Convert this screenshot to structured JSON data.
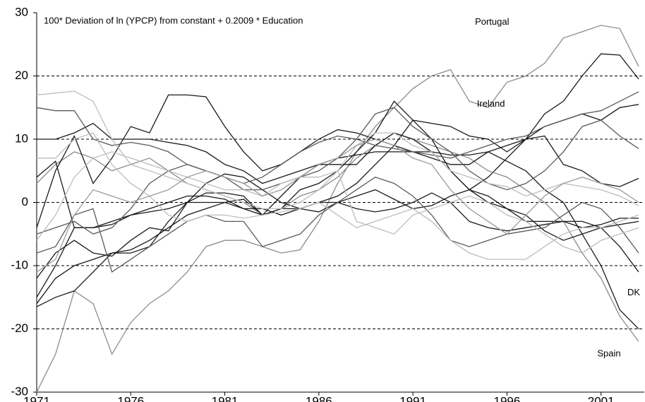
{
  "chart_data": {
    "type": "line",
    "annotation": "100* Deviation of ln (YPCP) from constant + 0.2009 * Education",
    "x": [
      1971,
      1972,
      1973,
      1974,
      1975,
      1976,
      1977,
      1978,
      1979,
      1980,
      1981,
      1982,
      1983,
      1984,
      1985,
      1986,
      1987,
      1988,
      1989,
      1990,
      1991,
      1992,
      1993,
      1994,
      1995,
      1996,
      1997,
      1998,
      1999,
      2000,
      2001,
      2002,
      2003
    ],
    "xlim": [
      1971,
      2003
    ],
    "xticks": [
      1971,
      1976,
      1981,
      1986,
      1991,
      1996,
      2001
    ],
    "ylim": [
      -30,
      30
    ],
    "yticks": [
      -30,
      -20,
      -10,
      0,
      10,
      20,
      30
    ],
    "grid": true,
    "series": [
      {
        "name": "Portugal",
        "color": "#8c8c8c",
        "values": [
          -30,
          -24,
          -14,
          -16,
          -24,
          -19,
          -16,
          -14,
          -11,
          -7,
          -6,
          -6,
          -7,
          -8,
          -7.5,
          -3,
          3,
          8,
          12,
          15,
          18,
          20,
          21,
          16,
          15,
          19,
          20,
          22,
          26,
          27,
          28,
          27.5,
          21.5
        ]
      },
      {
        "name": "Ireland",
        "color": "#1a1a1a",
        "values": [
          -16.5,
          -15,
          -14,
          -11,
          -8,
          -8,
          -7,
          -3,
          0,
          0,
          0,
          0.5,
          -2,
          -1,
          -1,
          0,
          0,
          1,
          2,
          0.5,
          -1,
          -0.5,
          1,
          2,
          4,
          7,
          10,
          14,
          16,
          20,
          23.5,
          23.3,
          19.5
        ]
      },
      {
        "name": "DK",
        "color": "#1a1a1a",
        "values": [
          10,
          10,
          11,
          12.5,
          10,
          10,
          10,
          9.5,
          9,
          8,
          6,
          5,
          3,
          4,
          5,
          6,
          7,
          7.5,
          8,
          8,
          8,
          8,
          7.5,
          7.5,
          8,
          6.5,
          5,
          2,
          0,
          -5,
          -10,
          -17,
          -20
        ]
      },
      {
        "name": "Spain",
        "color": "#8c8c8c",
        "values": [
          3,
          6,
          8,
          7,
          5,
          6,
          7,
          5,
          3,
          2,
          1,
          0,
          -2,
          -1,
          1,
          2,
          4,
          7,
          9,
          11,
          10,
          9,
          8,
          7,
          5,
          4,
          2,
          0,
          -3,
          -8,
          -12,
          -18,
          -22
        ]
      },
      {
        "color": "#1a1a1a",
        "values": [
          -4,
          5,
          10.5,
          3,
          7,
          12,
          11,
          17,
          17,
          16.7,
          12,
          8,
          5,
          6,
          8,
          10,
          11.5,
          11,
          10,
          9,
          8,
          7,
          6,
          6,
          8,
          9,
          10,
          12,
          13,
          14,
          13,
          15,
          15.5
        ]
      },
      {
        "color": "#1a1a1a",
        "values": [
          -15,
          -10,
          -4,
          -4,
          -3.5,
          -2,
          -1,
          0,
          1,
          1,
          0.5,
          -1,
          -2,
          -1,
          2,
          3,
          5,
          8,
          11,
          16,
          13,
          10,
          5,
          2,
          1,
          -1,
          -3,
          -3,
          -3,
          -4,
          -3.5,
          -2.5,
          -2.5
        ]
      },
      {
        "color": "#1a1a1a",
        "values": [
          -16,
          -12,
          -10,
          -9,
          -8,
          -7.5,
          -6,
          -4,
          -2,
          -1,
          0,
          -1,
          -1,
          -2,
          -1,
          0,
          1,
          3,
          6,
          9,
          13,
          12.5,
          12,
          10.5,
          10,
          8,
          10,
          10.5,
          6,
          5,
          3,
          2.5,
          3.8
        ]
      },
      {
        "color": "#1a1a1a",
        "values": [
          4,
          6.5,
          -4,
          -4,
          -3,
          -2,
          -1.5,
          -1,
          0,
          3,
          4.5,
          4,
          2,
          0,
          -1,
          -1.5,
          0,
          -1,
          -1.5,
          -1,
          0,
          1.5,
          0,
          -3,
          -4,
          -4.5,
          -4,
          -3.5,
          -3,
          -3,
          -4,
          -7,
          -11
        ]
      },
      {
        "color": "#1a1a1a",
        "values": [
          -12,
          -8,
          -6,
          -8,
          -8.5,
          -6,
          -4,
          -4.5,
          0,
          1.5,
          1.5,
          1,
          -2,
          1,
          4,
          6,
          6,
          6,
          9,
          11,
          10,
          8,
          5,
          2,
          0,
          -1,
          -2,
          -4.5,
          -6,
          -5,
          -4,
          -3.5,
          -3
        ]
      },
      {
        "color": "#5a5a5a",
        "values": [
          -5,
          -4,
          -3,
          -5,
          -4,
          -1,
          3,
          5,
          6,
          5,
          4,
          3,
          4,
          6,
          8,
          9.5,
          10.5,
          10,
          9,
          8.5,
          8,
          7.5,
          7,
          8,
          9,
          10,
          10.5,
          12,
          13,
          14,
          14.5,
          16,
          17.5
        ]
      },
      {
        "color": "#5a5a5a",
        "values": [
          15,
          14.5,
          14.5,
          10,
          9,
          9.5,
          9,
          8,
          6,
          5,
          4,
          2,
          2,
          3,
          4,
          5,
          7,
          10,
          14,
          15,
          12,
          10,
          8,
          5,
          3,
          2,
          3,
          5,
          8,
          12,
          13,
          10.5,
          8.5
        ]
      },
      {
        "color": "#5a5a5a",
        "values": [
          -8,
          -7,
          -2,
          -1,
          -11,
          -9,
          -7,
          -5,
          -3,
          -2,
          -3,
          -3,
          -7,
          -6,
          -5,
          -2,
          0,
          2,
          4,
          3,
          1,
          -2,
          -6,
          -7,
          -6,
          -5,
          -4.5,
          -4,
          -2,
          0,
          -1,
          -4,
          -8
        ]
      },
      {
        "color": "#bdbdbd",
        "values": [
          17,
          17.3,
          17.6,
          16,
          10,
          6,
          5,
          4,
          3,
          2,
          1,
          0,
          -1,
          -1,
          0,
          2,
          5,
          9,
          11,
          11,
          9,
          8,
          5,
          4,
          3,
          2.5,
          1,
          2,
          3,
          2.5,
          2,
          1,
          -0.5
        ]
      },
      {
        "color": "#bdbdbd",
        "values": [
          7,
          7,
          10,
          11,
          6,
          3,
          1,
          -2,
          -3,
          -2,
          -2,
          -2.5,
          -2,
          -1.5,
          -1,
          0,
          -2,
          -4,
          -3,
          -2,
          -1,
          -3,
          -6,
          -8,
          -9,
          -9,
          -9,
          -7,
          -5,
          -4,
          -4,
          -3,
          -2
        ]
      },
      {
        "color": "#bdbdbd",
        "values": [
          -6,
          -2,
          4,
          7,
          8,
          7,
          6,
          5,
          4,
          3,
          2,
          2,
          1,
          3,
          4,
          4,
          5,
          -3,
          -4,
          -5,
          -2,
          -1,
          0,
          1,
          0,
          -2,
          -3,
          -5,
          -7,
          -8,
          -6,
          -5,
          -4
        ]
      },
      {
        "color": "#9a9a9a",
        "values": [
          -11,
          -9,
          -2,
          2,
          1,
          0,
          1,
          2,
          4,
          5,
          4,
          3,
          1,
          2,
          4,
          6,
          7,
          9,
          10,
          9,
          7,
          6,
          2,
          -1,
          -3,
          -5,
          -2,
          1,
          3,
          4,
          3,
          2,
          0
        ]
      }
    ]
  }
}
